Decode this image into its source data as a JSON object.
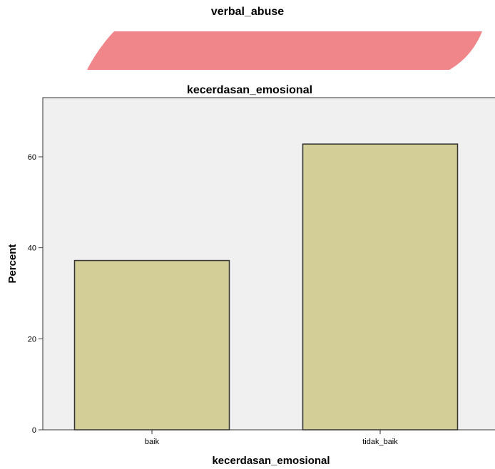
{
  "top_panel": {
    "title": "verbal_abuse",
    "shape_color": "#f0868a"
  },
  "chart_data": {
    "type": "bar",
    "title": "kecerdasan_emosional",
    "categories": [
      "baik",
      "tidak_baik"
    ],
    "values": [
      37.2,
      62.8
    ],
    "xlabel": "kecerdasan_emosional",
    "ylabel": "Percent",
    "ylim": [
      0,
      73
    ],
    "yticks": [
      0,
      20,
      40,
      60
    ],
    "grid": false,
    "bar_color": "#d3cd98",
    "bar_edge_color": "#333333",
    "plot_background": "#f0f0f0"
  }
}
